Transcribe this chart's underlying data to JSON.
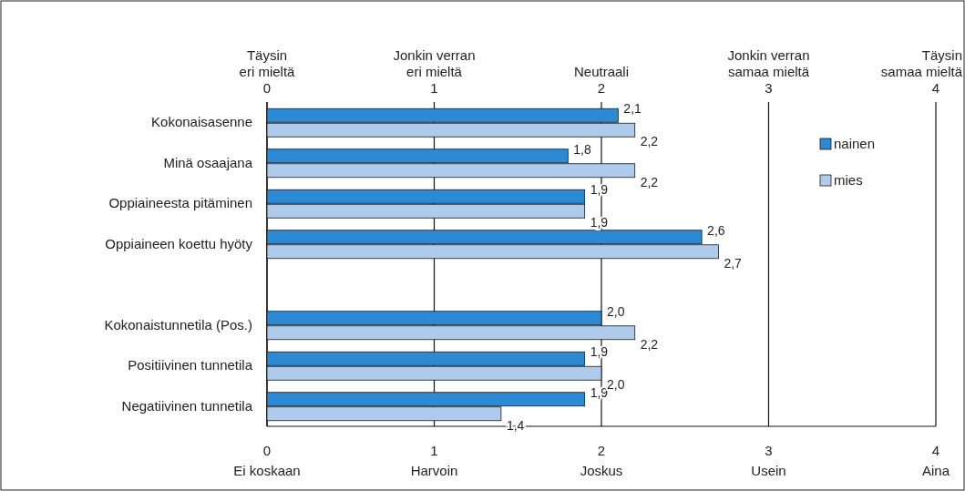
{
  "chart_data": {
    "type": "bar",
    "orientation": "horizontal",
    "categories": [
      "Kokonaisasenne",
      "Minä osaajana",
      "Oppiaineesta pitäminen",
      "Oppiaineen koettu hyöty",
      null,
      "Kokonaistunnetila (Pos.)",
      "Positiivinen tunnetila",
      "Negatiivinen tunnetila"
    ],
    "series": [
      {
        "name": "nainen",
        "color": "#2b8ad3",
        "values": [
          2.1,
          1.8,
          1.9,
          2.6,
          null,
          2.0,
          1.9,
          1.9
        ],
        "value_labels": [
          "2,1",
          "1,8",
          "1,9",
          "2,6",
          null,
          "2,0",
          "1,9",
          "1,9"
        ]
      },
      {
        "name": "mies",
        "color": "#aecbeb",
        "values": [
          2.2,
          2.2,
          1.9,
          2.7,
          null,
          2.2,
          2.0,
          1.4
        ],
        "value_labels": [
          "2,2",
          "2,2",
          "1,9",
          "2,7",
          null,
          "2,2",
          "2,0",
          "1,4"
        ]
      }
    ],
    "xlim": [
      0,
      4
    ],
    "xticks": [
      {
        "value": 0,
        "label": "0\nEi koskaan"
      },
      {
        "value": 1,
        "label": "1\nHarvoin"
      },
      {
        "value": 2,
        "label": "2\nJoskus"
      },
      {
        "value": 3,
        "label": "3\nUsein"
      },
      {
        "value": 4,
        "label": "4\nAina"
      }
    ],
    "x2lim": [
      0,
      4
    ],
    "x2ticks": [
      0,
      1,
      2,
      3,
      4
    ],
    "annotations": [
      "Täysin\neri mieltä",
      "Jonkin verran\neri mieltä",
      "Neutraali",
      "Jonkin verran\nsamaa mieltä",
      "Täysin\nsamaa mieltä"
    ],
    "grid": "x",
    "legend": "right"
  }
}
